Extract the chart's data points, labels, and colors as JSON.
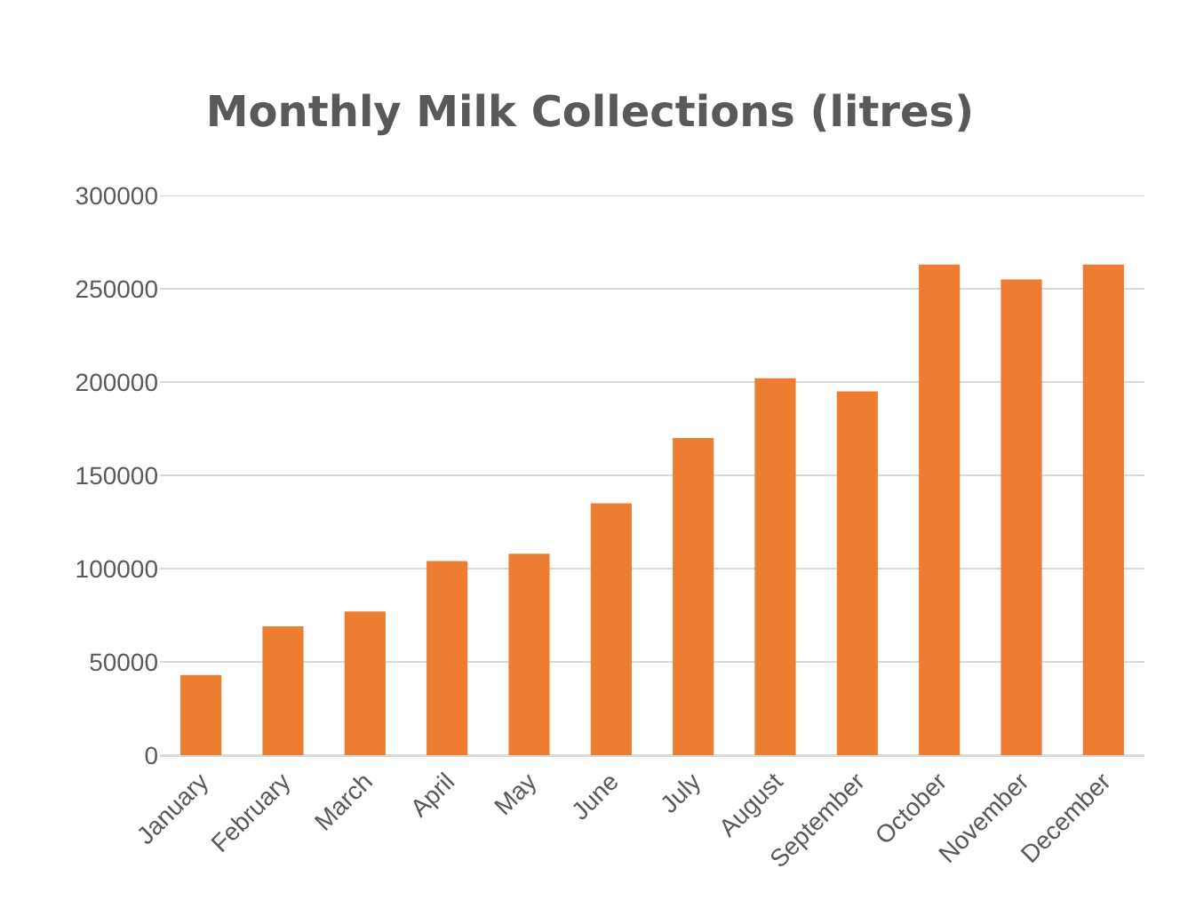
{
  "chart_data": {
    "type": "bar",
    "title": "Monthly Milk Collections (litres)",
    "categories": [
      "January",
      "February",
      "March",
      "April",
      "May",
      "June",
      "July",
      "August",
      "September",
      "October",
      "November",
      "December"
    ],
    "values": [
      43000,
      69000,
      77000,
      104000,
      108000,
      135000,
      170000,
      202000,
      195000,
      263000,
      255000,
      263000
    ],
    "color": "#ed7d31",
    "ylim": [
      0,
      300000
    ],
    "yticks": [
      0,
      50000,
      100000,
      150000,
      200000,
      250000,
      300000
    ],
    "grid": "y"
  }
}
